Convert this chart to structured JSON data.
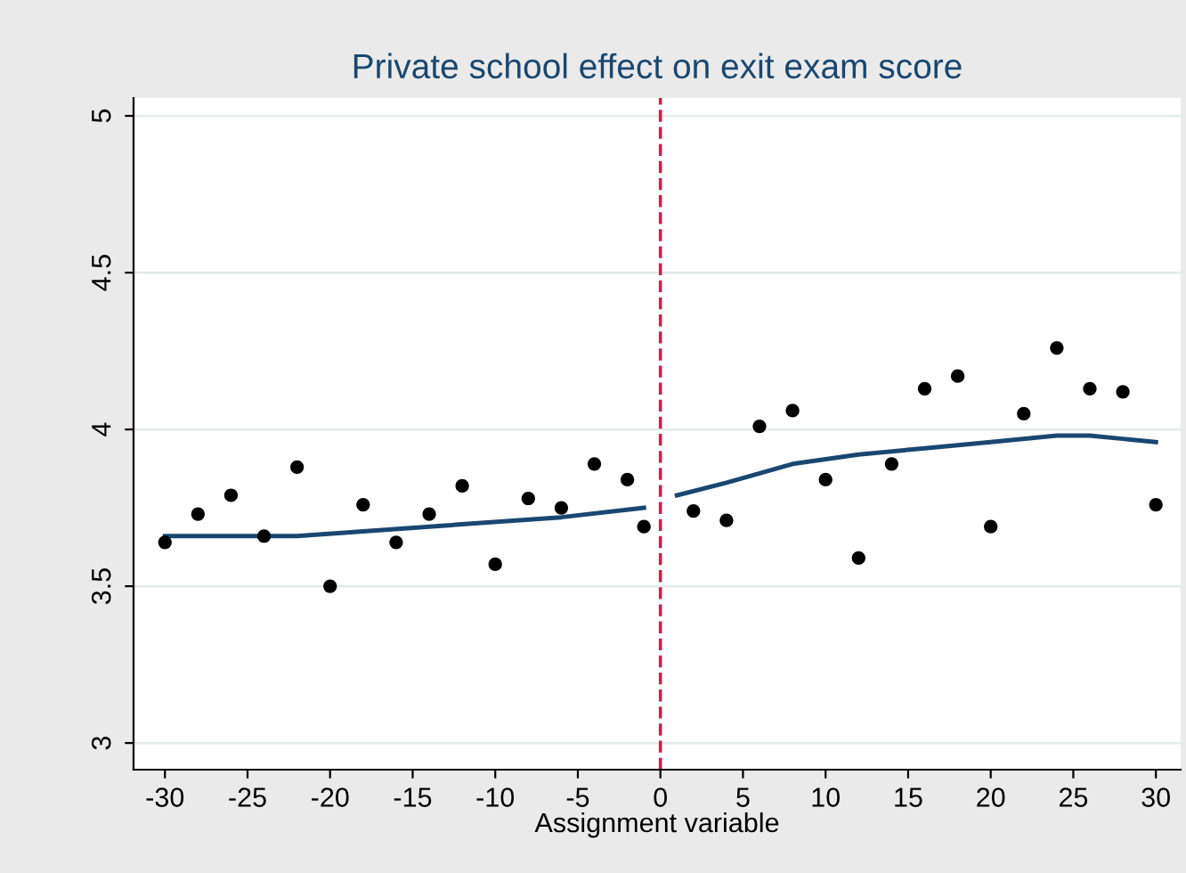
{
  "chart_data": {
    "type": "scatter",
    "title": "Private school effect on exit exam score",
    "xlabel": "Assignment variable",
    "series": [
      {
        "color": "#000000",
        "x": [
          -30,
          -28,
          -26,
          -24,
          -22,
          -20,
          -18,
          -16,
          -14,
          -12,
          -10,
          -8,
          -6,
          -4,
          -2,
          -1,
          2,
          4,
          6,
          8,
          10,
          12,
          14,
          16,
          18,
          20,
          22,
          24,
          26,
          28,
          30
        ],
        "values": [
          3.64,
          3.73,
          3.79,
          3.66,
          3.88,
          3.5,
          3.76,
          3.64,
          3.73,
          3.82,
          3.57,
          3.78,
          3.75,
          3.89,
          3.84,
          3.69,
          3.74,
          3.71,
          4.01,
          4.06,
          3.84,
          3.59,
          3.89,
          4.13,
          4.17,
          3.69,
          4.05,
          4.26,
          4.13,
          4.12,
          3.76
        ]
      },
      {
        "type": "line",
        "marker": "none",
        "color": "#1a476f",
        "x": [
          -30,
          -22,
          -14,
          -6,
          -1
        ],
        "values": [
          3.66,
          3.66,
          3.69,
          3.72,
          3.75
        ]
      },
      {
        "type": "line",
        "marker": "none",
        "color": "#1a476f",
        "x": [
          1,
          4,
          8,
          12,
          16,
          20,
          24,
          26,
          28,
          30
        ],
        "values": [
          3.79,
          3.83,
          3.89,
          3.92,
          3.94,
          3.96,
          3.98,
          3.98,
          3.97,
          3.96
        ]
      }
    ],
    "xlim": [
      -31.9,
      31.5
    ],
    "xticks": [
      -30,
      -25,
      -20,
      -15,
      -10,
      -5,
      0,
      5,
      10,
      15,
      20,
      25,
      30
    ],
    "ylim": [
      2.915,
      5.057
    ],
    "yticks": [
      3,
      3.5,
      4,
      4.5,
      5
    ],
    "grid": "y",
    "marker": "circle",
    "ref_lines": [
      {
        "axis": "x",
        "value": 0,
        "color": "#d0214b",
        "line_style": "dashed"
      }
    ]
  }
}
